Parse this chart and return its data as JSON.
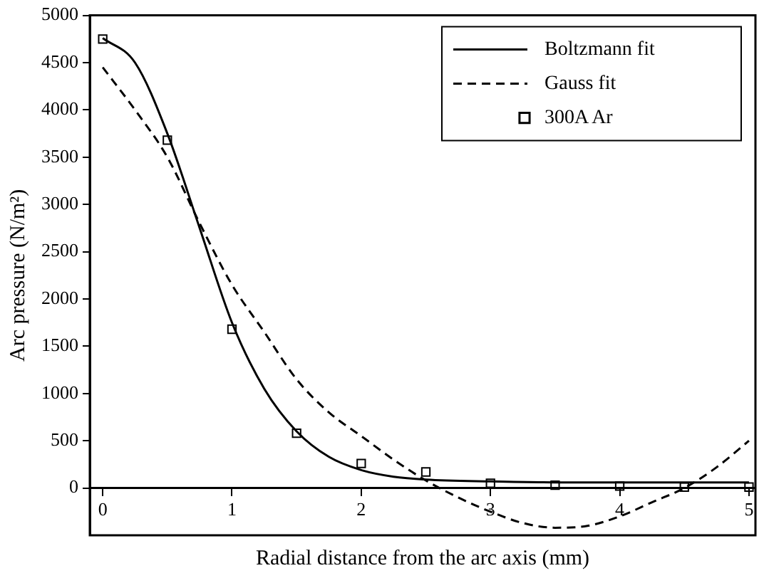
{
  "chart_data": {
    "type": "line",
    "xlabel": "Radial distance from the arc axis (mm)",
    "ylabel": "Arc pressure (N/m²)",
    "xlim": [
      -0.1,
      5.05
    ],
    "ylim": [
      -500,
      5000
    ],
    "xticks": [
      0,
      1,
      2,
      3,
      4,
      5
    ],
    "yticks": [
      0,
      500,
      1000,
      1500,
      2000,
      2500,
      3000,
      3500,
      4000,
      4500,
      5000
    ],
    "grid": false,
    "legend": "top right",
    "series": [
      {
        "name": "Boltzmann fit",
        "color": "#000000",
        "line_style": "solid",
        "marker": "none",
        "x": [
          0,
          0.25,
          0.5,
          0.75,
          1,
          1.25,
          1.5,
          1.75,
          2,
          2.25,
          2.5,
          3,
          3.5,
          4,
          4.5,
          5
        ],
        "values": [
          4760,
          4500,
          3750,
          2750,
          1750,
          1050,
          600,
          330,
          190,
          120,
          90,
          70,
          60,
          60,
          60,
          60
        ]
      },
      {
        "name": "Gauss fit",
        "color": "#000000",
        "line_style": "dashed",
        "marker": "none",
        "x": [
          0,
          0.25,
          0.5,
          0.75,
          1,
          1.25,
          1.5,
          1.75,
          2,
          2.25,
          2.5,
          2.75,
          3,
          3.25,
          3.5,
          3.75,
          4,
          4.25,
          4.5,
          4.75,
          5
        ],
        "values": [
          4450,
          4000,
          3500,
          2800,
          2150,
          1650,
          1150,
          800,
          550,
          300,
          80,
          -100,
          -250,
          -370,
          -420,
          -400,
          -300,
          -150,
          0,
          220,
          500
        ]
      },
      {
        "name": "300A Ar",
        "type": "scatter",
        "color": "#000000",
        "marker": "square",
        "x": [
          0,
          0.5,
          1,
          1.5,
          2,
          2.5,
          3,
          3.5,
          4,
          4.5,
          5
        ],
        "values": [
          4750,
          3680,
          1680,
          580,
          260,
          170,
          50,
          30,
          20,
          10,
          10
        ]
      }
    ]
  }
}
